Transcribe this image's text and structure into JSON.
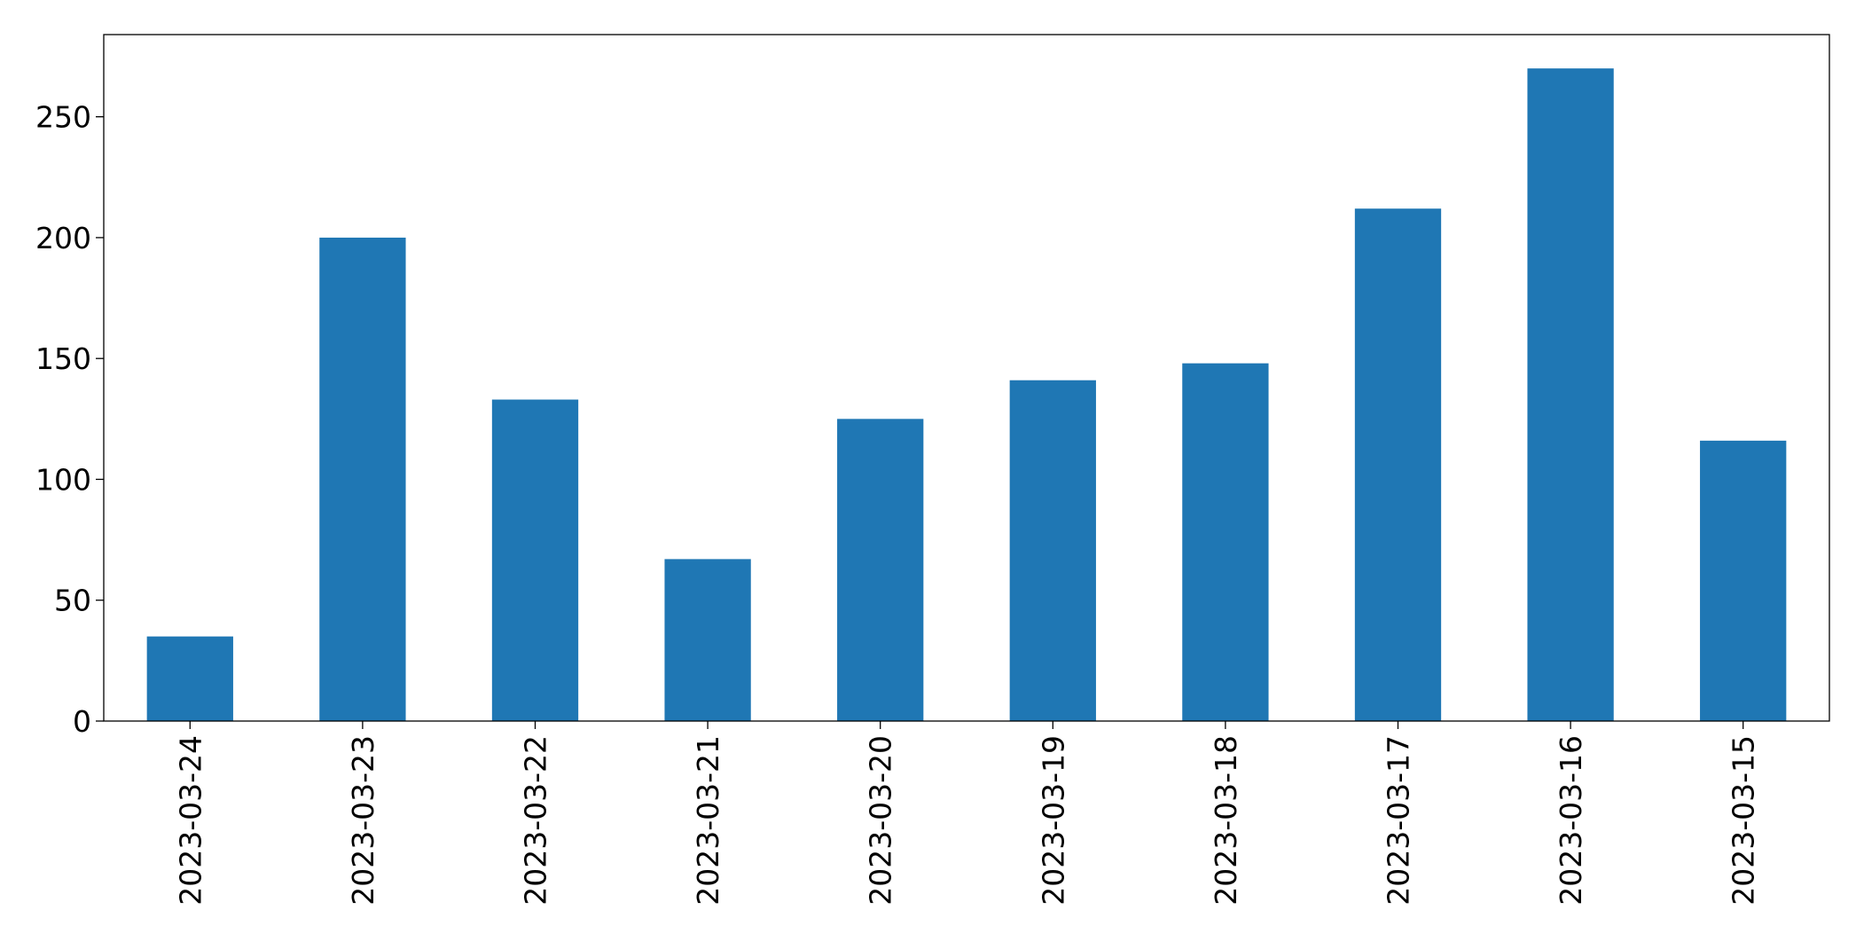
{
  "chart_data": {
    "type": "bar",
    "categories": [
      "2023-03-24",
      "2023-03-23",
      "2023-03-22",
      "2023-03-21",
      "2023-03-20",
      "2023-03-19",
      "2023-03-18",
      "2023-03-17",
      "2023-03-16",
      "2023-03-15"
    ],
    "values": [
      35,
      200,
      133,
      67,
      125,
      141,
      148,
      212,
      270,
      116
    ],
    "color": "#1f77b4",
    "ylim": [
      0,
      284
    ],
    "yticks": [
      0,
      50,
      100,
      150,
      200,
      250
    ],
    "grid": false
  }
}
